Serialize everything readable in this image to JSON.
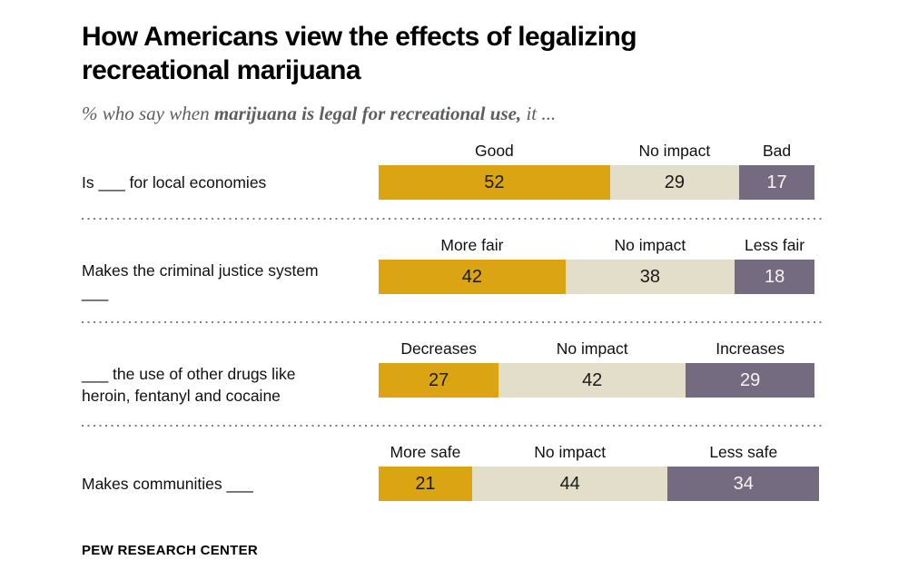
{
  "header": {
    "title_line1": "How Americans view the effects of legalizing",
    "title_line2": "recreational marijuana",
    "subtitle_prefix": "% who say when ",
    "subtitle_bold": "marijuana is legal for recreational use,",
    "subtitle_suffix": " it ..."
  },
  "colors": {
    "positive": "#dba412",
    "no_impact": "#e3dec9",
    "negative": "#756b80",
    "value_text_dark": "#1a1a1a",
    "value_text_light": "#f7f5f0",
    "separator": "#7f7f7f",
    "subtitle_gray": "#5c5e60"
  },
  "chart_data": {
    "type": "bar",
    "orientation": "horizontal",
    "stacked": true,
    "unit": "percent",
    "title": "How Americans view the effects of legalizing recreational marijuana",
    "subtitle": "% who say when marijuana is legal for recreational use, it ...",
    "x_scale": [
      0,
      100
    ],
    "grid": false,
    "legend": "per-segment labels above each bar",
    "categories": [
      "Is ___ for local economies",
      "Makes the criminal justice system ___",
      "___ the use of other drugs like heroin, fentanyl and cocaine",
      "Makes communities ___"
    ],
    "series": [
      {
        "name": "positive-view",
        "color": "#dba412",
        "labels": [
          "Good",
          "More fair",
          "Decreases",
          "More safe"
        ],
        "values": [
          52,
          42,
          27,
          21
        ]
      },
      {
        "name": "no-impact",
        "color": "#e3dec9",
        "labels": [
          "No impact",
          "No impact",
          "No impact",
          "No impact"
        ],
        "values": [
          29,
          38,
          42,
          44
        ]
      },
      {
        "name": "negative-view",
        "color": "#756b80",
        "labels": [
          "Bad",
          "Less fair",
          "Increases",
          "Less safe"
        ],
        "values": [
          17,
          18,
          29,
          34
        ]
      }
    ]
  },
  "rows": [
    {
      "label": "Is ___ for local economies",
      "segments": [
        {
          "label": "Good",
          "value": 52,
          "color": "#dba412",
          "text_color": "#1a1a1a"
        },
        {
          "label": "No impact",
          "value": 29,
          "color": "#e3dec9",
          "text_color": "#1a1a1a"
        },
        {
          "label": "Bad",
          "value": 17,
          "color": "#756b80",
          "text_color": "#f7f5f0"
        }
      ]
    },
    {
      "label": "Makes the criminal justice system ___",
      "segments": [
        {
          "label": "More fair",
          "value": 42,
          "color": "#dba412",
          "text_color": "#1a1a1a"
        },
        {
          "label": "No impact",
          "value": 38,
          "color": "#e3dec9",
          "text_color": "#1a1a1a"
        },
        {
          "label": "Less fair",
          "value": 18,
          "color": "#756b80",
          "text_color": "#f7f5f0"
        }
      ]
    },
    {
      "label": "___ the use of other drugs like heroin, fentanyl and cocaine",
      "segments": [
        {
          "label": "Decreases",
          "value": 27,
          "color": "#dba412",
          "text_color": "#1a1a1a"
        },
        {
          "label": "No impact",
          "value": 42,
          "color": "#e3dec9",
          "text_color": "#1a1a1a"
        },
        {
          "label": "Increases",
          "value": 29,
          "color": "#756b80",
          "text_color": "#f7f5f0"
        }
      ]
    },
    {
      "label": "Makes communities ___",
      "segments": [
        {
          "label": "More safe",
          "value": 21,
          "color": "#dba412",
          "text_color": "#1a1a1a"
        },
        {
          "label": "No impact",
          "value": 44,
          "color": "#e3dec9",
          "text_color": "#1a1a1a"
        },
        {
          "label": "Less safe",
          "value": 34,
          "color": "#756b80",
          "text_color": "#f7f5f0"
        }
      ]
    }
  ],
  "footer": {
    "source_label": "PEW RESEARCH CENTER"
  }
}
